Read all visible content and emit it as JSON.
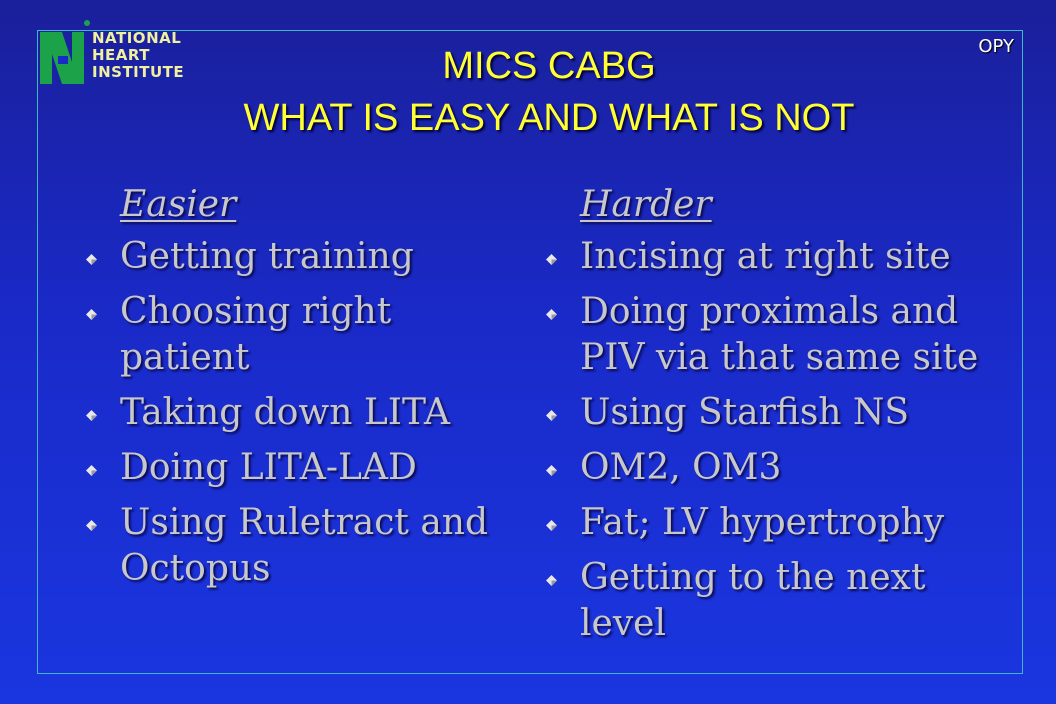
{
  "logo": {
    "lines": [
      "NATIONAL",
      "HEART",
      "INSTITUTE"
    ],
    "colors": {
      "green": "#1ca34a",
      "text": "#f0f0a0"
    }
  },
  "corner_tag": "OPY",
  "title": {
    "line1": "MICS CABG",
    "line2": "WHAT IS EASY AND WHAT IS NOT"
  },
  "columns": {
    "left": {
      "heading": "Easier",
      "items": [
        "Getting training",
        "Choosing right patient",
        "Taking down LITA",
        "Doing LITA-LAD",
        "Using Ruletract and Octopus"
      ]
    },
    "right": {
      "heading": "Harder",
      "items": [
        "Incising at right site",
        "Doing proximals and PIV via that same site",
        "Using Starfish NS",
        "OM2, OM3",
        "Fat; LV hypertrophy",
        "Getting to the next level"
      ]
    }
  },
  "colors": {
    "background": "#1a2ac8",
    "frame": "#3fb7c7",
    "title": "#ffff33",
    "body_text": "#c8c8c8"
  },
  "icons": {
    "bullet": "diamond-bullet-icon"
  }
}
